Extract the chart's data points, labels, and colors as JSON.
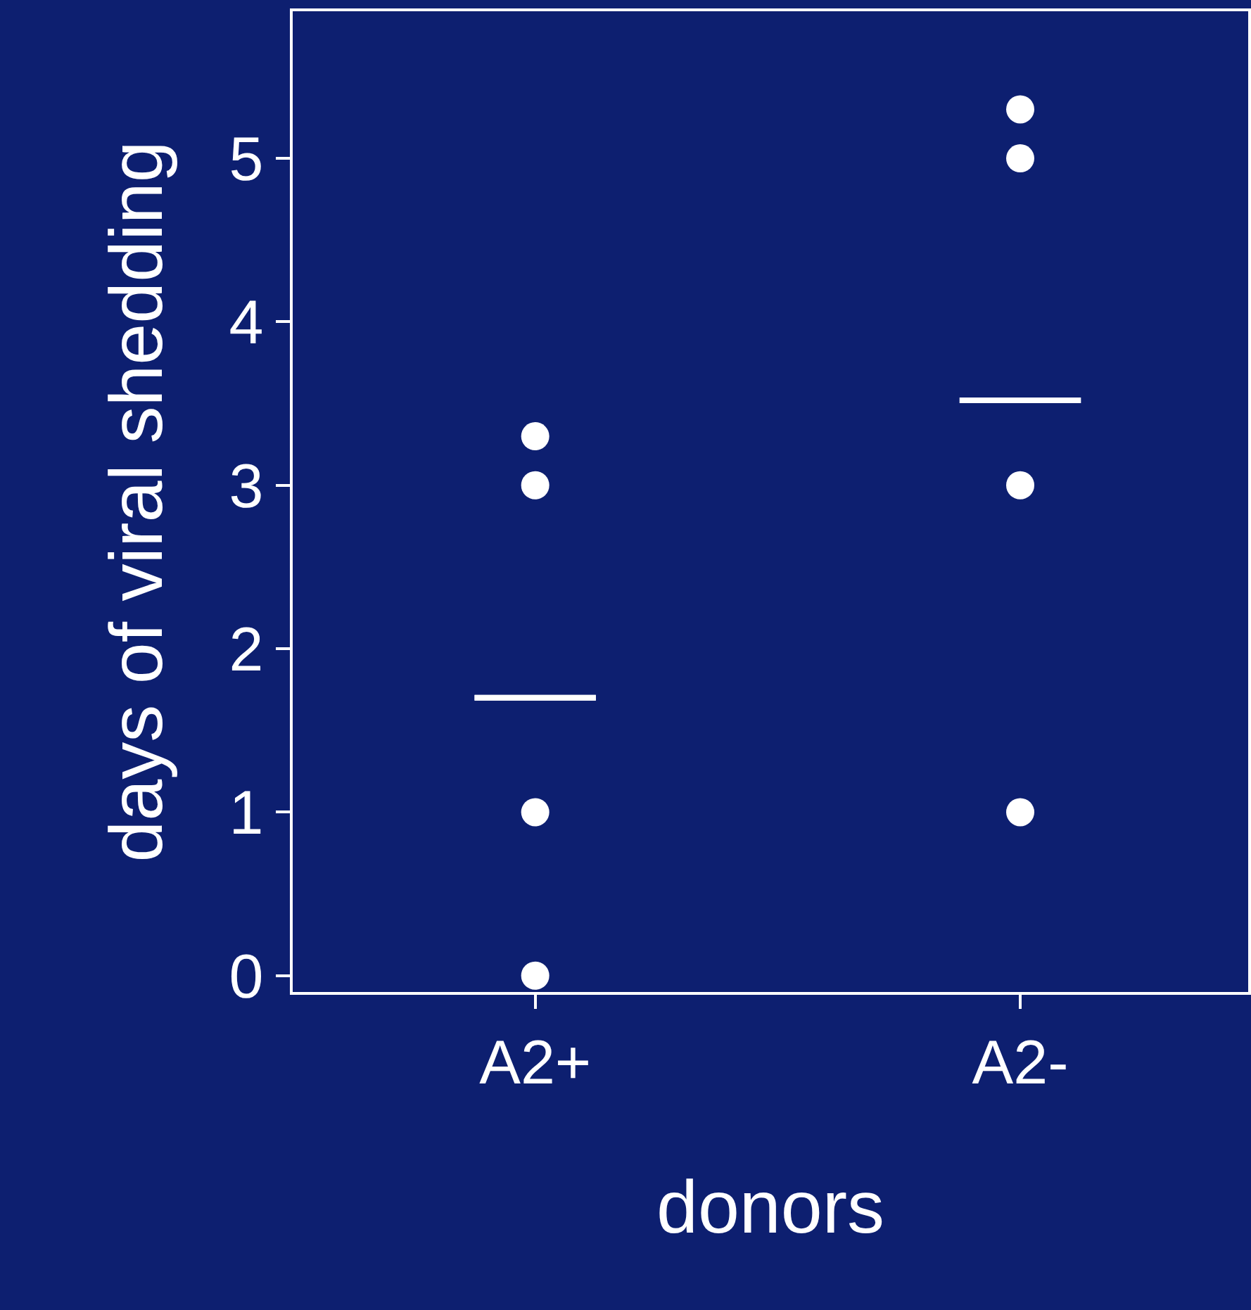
{
  "chart_data": {
    "type": "scatter",
    "xlabel": "donors",
    "ylabel": "days of viral shedding",
    "categories": [
      "A2+",
      "A2-"
    ],
    "series": [
      {
        "marker": "circle",
        "color": "#ffffff",
        "x": [
          "A2+",
          "A2+",
          "A2+",
          "A2+",
          "A2-",
          "A2-",
          "A2-",
          "A2-"
        ],
        "values": [
          0,
          1,
          3,
          3.3,
          1,
          3,
          5,
          5.3
        ]
      },
      {
        "type": "box",
        "color": "#ffffff",
        "boxes": [
          {
            "low": 1.7,
            "q1": 1.7,
            "median": 1.7,
            "q3": 1.7,
            "high": 1.7
          },
          {
            "low": 3.52,
            "q1": 3.52,
            "median": 3.52,
            "q3": 3.52,
            "high": 3.52
          }
        ]
      }
    ],
    "ylim": [
      -0.1,
      5.9
    ],
    "yticks": [
      0,
      1,
      2,
      3,
      4,
      5
    ],
    "grid": false
  }
}
